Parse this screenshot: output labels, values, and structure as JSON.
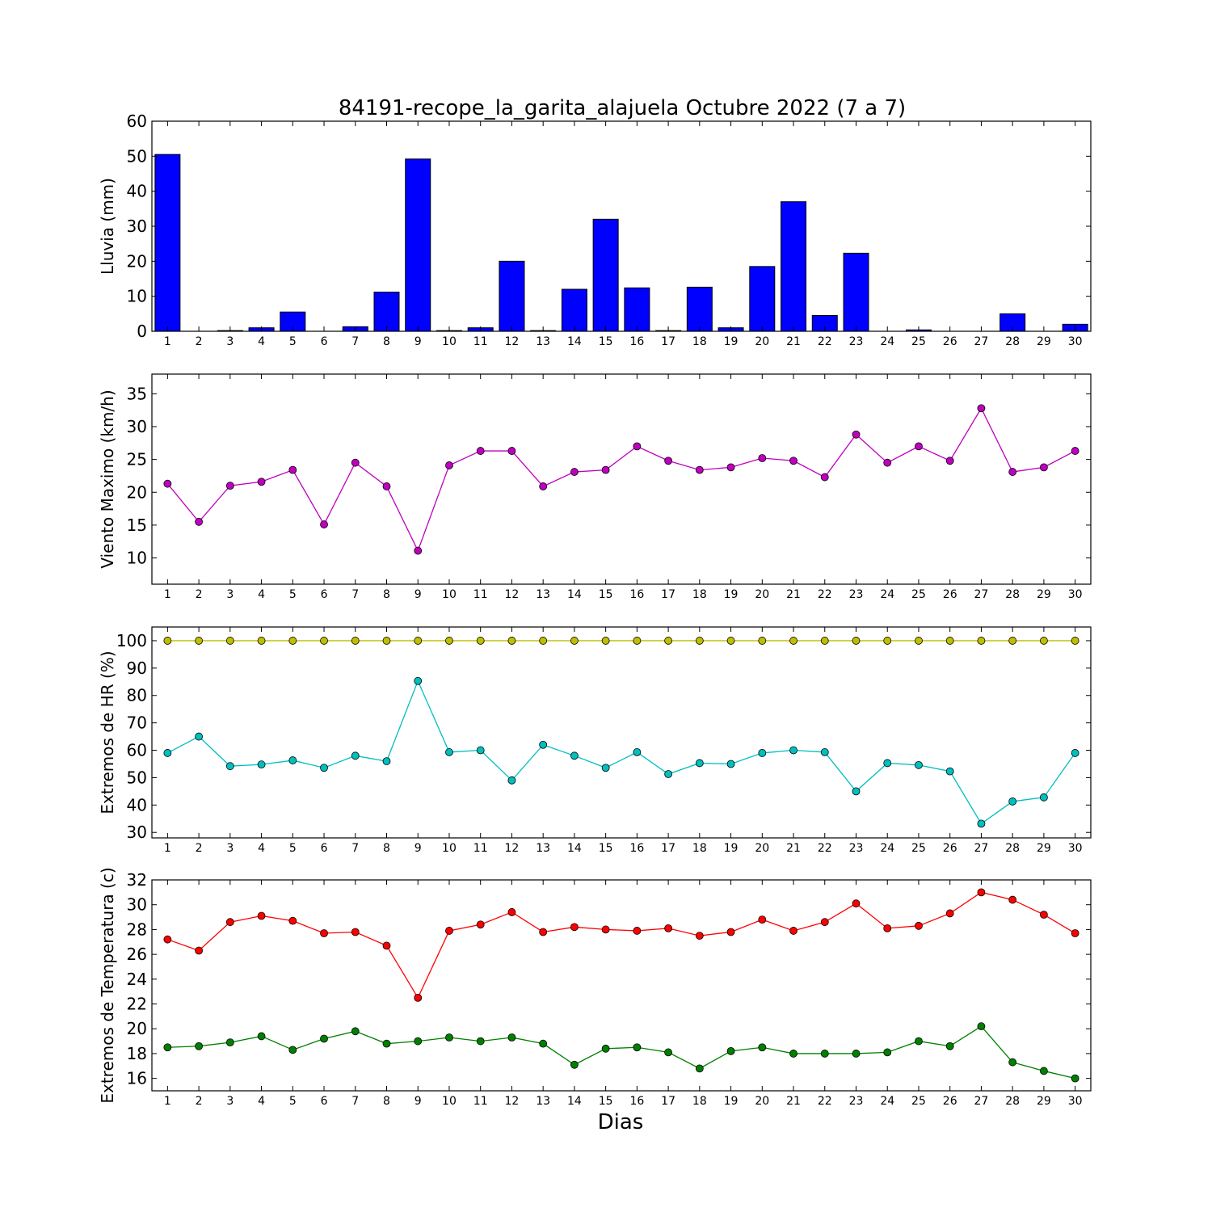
{
  "figure": {
    "title": "84191-recope_la_garita_alajuela Octubre 2022  (7 a 7)",
    "xlabel": "Dias"
  },
  "colors": {
    "rain": "#0000ff",
    "wind": "#bf00bf",
    "hr_max": "#bfbf00",
    "hr_min": "#00bfbf",
    "temp_max": "#ff0000",
    "temp_min": "#008000"
  },
  "chart_data": [
    {
      "type": "bar",
      "ylabel": "Lluvia (mm)",
      "x": [
        1,
        2,
        3,
        4,
        5,
        6,
        7,
        8,
        9,
        10,
        11,
        12,
        13,
        14,
        15,
        16,
        17,
        18,
        19,
        20,
        21,
        22,
        23,
        24,
        25,
        26,
        27,
        28,
        29,
        30
      ],
      "xlim": [
        0.5,
        30.5
      ],
      "ylim": [
        0,
        60
      ],
      "yticks": [
        0,
        10,
        20,
        30,
        40,
        50,
        60
      ],
      "series": [
        {
          "values": [
            50.5,
            0,
            0.2,
            1,
            5.5,
            0,
            1.3,
            11.2,
            49.2,
            0.2,
            1,
            20,
            0.2,
            12,
            32,
            12.4,
            0.2,
            12.6,
            1,
            18.5,
            37,
            4.5,
            22.3,
            0,
            0.4,
            0,
            0,
            5,
            0,
            2
          ],
          "color_key": "rain"
        }
      ]
    },
    {
      "type": "line",
      "ylabel": "Viento Maximo (km/h)",
      "x": [
        1,
        2,
        3,
        4,
        5,
        6,
        7,
        8,
        9,
        10,
        11,
        12,
        13,
        14,
        15,
        16,
        17,
        18,
        19,
        20,
        21,
        22,
        23,
        24,
        25,
        26,
        27,
        28,
        29,
        30
      ],
      "xlim": [
        0.5,
        30.5
      ],
      "ylim": [
        6,
        38
      ],
      "yticks": [
        10,
        15,
        20,
        25,
        30,
        35
      ],
      "series": [
        {
          "values": [
            21.3,
            15.5,
            21,
            21.6,
            23.4,
            15.1,
            24.5,
            20.9,
            11.1,
            24.1,
            26.3,
            26.3,
            20.9,
            23.1,
            23.4,
            27,
            24.8,
            23.4,
            23.8,
            25.2,
            24.8,
            22.3,
            28.8,
            24.5,
            27,
            24.8,
            32.8,
            23.1,
            23.8,
            26.3
          ],
          "color_key": "wind"
        }
      ]
    },
    {
      "type": "line",
      "ylabel": "Extremos de HR (%)",
      "x": [
        1,
        2,
        3,
        4,
        5,
        6,
        7,
        8,
        9,
        10,
        11,
        12,
        13,
        14,
        15,
        16,
        17,
        18,
        19,
        20,
        21,
        22,
        23,
        24,
        25,
        26,
        27,
        28,
        29,
        30
      ],
      "xlim": [
        0.5,
        30.5
      ],
      "ylim": [
        28,
        105
      ],
      "yticks": [
        30,
        40,
        50,
        60,
        70,
        80,
        90,
        100
      ],
      "series": [
        {
          "values": [
            100,
            100,
            100,
            100,
            100,
            100,
            100,
            100,
            100,
            100,
            100,
            100,
            100,
            100,
            100,
            100,
            100,
            100,
            100,
            100,
            100,
            100,
            100,
            100,
            100,
            100,
            100,
            100,
            100,
            100
          ],
          "color_key": "hr_max"
        },
        {
          "values": [
            59,
            65,
            54.2,
            54.8,
            56.3,
            53.6,
            58,
            56,
            85.3,
            59.3,
            60,
            49,
            62,
            58,
            53.6,
            59.3,
            51.3,
            55.3,
            55,
            59,
            60,
            59.3,
            45,
            55.3,
            54.6,
            52.3,
            33.2,
            41.3,
            42.8,
            59
          ],
          "color_key": "hr_min"
        }
      ]
    },
    {
      "type": "line",
      "ylabel": "Extremos de Temperatura (c)",
      "x": [
        1,
        2,
        3,
        4,
        5,
        6,
        7,
        8,
        9,
        10,
        11,
        12,
        13,
        14,
        15,
        16,
        17,
        18,
        19,
        20,
        21,
        22,
        23,
        24,
        25,
        26,
        27,
        28,
        29,
        30
      ],
      "xlim": [
        0.5,
        30.5
      ],
      "ylim": [
        15,
        32
      ],
      "yticks": [
        16,
        18,
        20,
        22,
        24,
        26,
        28,
        30,
        32
      ],
      "series": [
        {
          "values": [
            27.2,
            26.3,
            28.6,
            29.1,
            28.7,
            27.7,
            27.8,
            26.7,
            22.5,
            27.9,
            28.4,
            29.4,
            27.8,
            28.2,
            28,
            27.9,
            28.1,
            27.5,
            27.8,
            28.8,
            27.9,
            28.6,
            30.1,
            28.1,
            28.3,
            29.3,
            31,
            30.4,
            29.2,
            27.7
          ],
          "color_key": "temp_max"
        },
        {
          "values": [
            18.5,
            18.6,
            18.9,
            19.4,
            18.3,
            19.2,
            19.8,
            18.8,
            19,
            19.3,
            19,
            19.3,
            18.8,
            17.1,
            18.4,
            18.5,
            18.1,
            16.8,
            18.2,
            18.5,
            18,
            18,
            18,
            18.1,
            19,
            18.6,
            20.2,
            17.3,
            16.6,
            16
          ],
          "color_key": "temp_min"
        }
      ]
    }
  ]
}
